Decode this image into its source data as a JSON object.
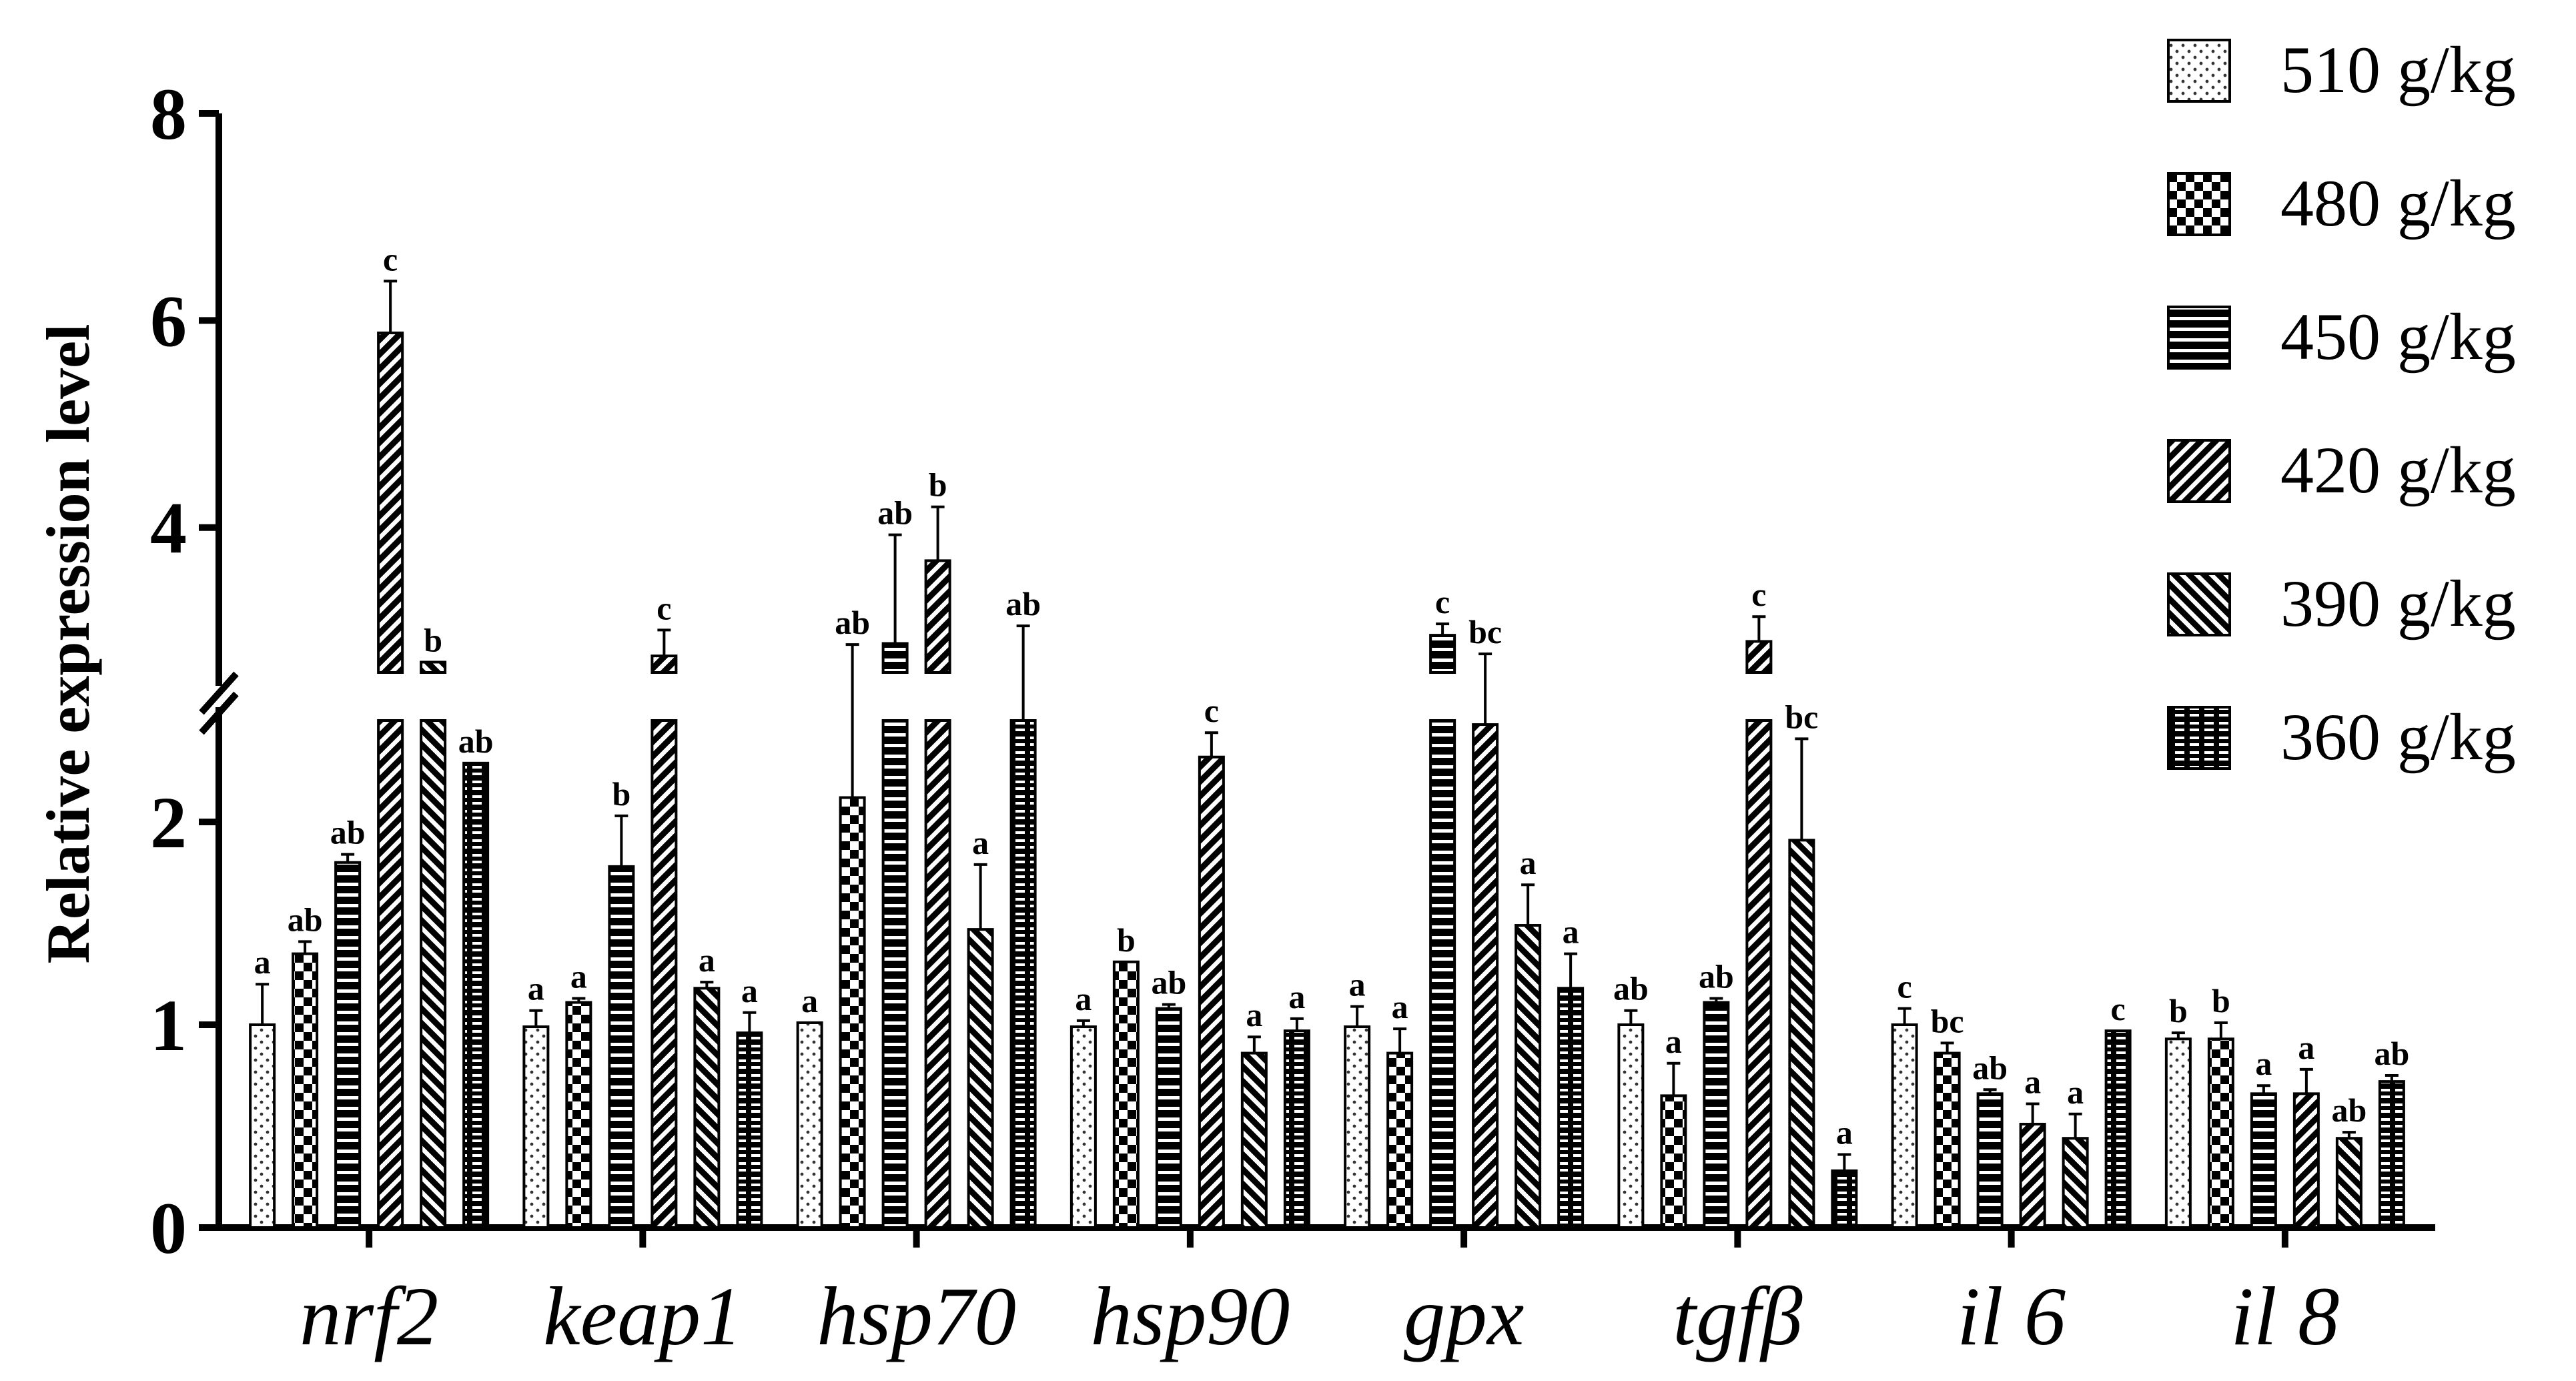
{
  "chart_data": {
    "type": "bar",
    "title": "",
    "xlabel": "",
    "ylabel": "Relative expression level",
    "yticks": [
      "0",
      "1",
      "2",
      "4",
      "6",
      "8"
    ],
    "ylim": [
      0,
      8
    ],
    "axis_break": [
      2.5,
      2.6
    ],
    "categories": [
      "nrf2",
      "keap1",
      "hsp70",
      "hsp90",
      "gpx",
      "tgfβ",
      "il 6",
      "il 8"
    ],
    "series": [
      {
        "name": "510 g/kg",
        "pattern": "dots",
        "values": [
          1.0,
          0.99,
          1.01,
          0.99,
          0.99,
          1.0,
          1.0,
          0.93
        ],
        "errors": [
          0.2,
          0.08,
          0.0,
          0.03,
          0.1,
          0.07,
          0.08,
          0.03
        ],
        "letters": [
          "a",
          "a",
          "a",
          "a",
          "a",
          "ab",
          "c",
          "b"
        ]
      },
      {
        "name": "480 g/kg",
        "pattern": "checker",
        "values": [
          1.35,
          1.11,
          2.12,
          1.31,
          0.86,
          0.65,
          0.86,
          0.93
        ],
        "errors": [
          0.06,
          0.02,
          0.75,
          0.0,
          0.12,
          0.16,
          0.05,
          0.08
        ],
        "letters": [
          "ab",
          "a",
          "ab",
          "b",
          "a",
          "a",
          "bc",
          "b"
        ]
      },
      {
        "name": "450 g/kg",
        "pattern": "hstripe",
        "values": [
          1.8,
          1.78,
          2.88,
          1.08,
          2.96,
          1.11,
          0.66,
          0.66
        ],
        "errors": [
          0.04,
          0.25,
          1.05,
          0.02,
          0.11,
          0.02,
          0.02,
          0.04
        ],
        "letters": [
          "ab",
          "b",
          "ab",
          "ab",
          "c",
          "ab",
          "ab",
          "a"
        ]
      },
      {
        "name": "420 g/kg",
        "pattern": "diag",
        "values": [
          5.88,
          2.76,
          3.68,
          2.32,
          2.48,
          2.9,
          0.51,
          0.66
        ],
        "errors": [
          0.5,
          0.25,
          0.52,
          0.12,
          0.3,
          0.24,
          0.1,
          0.12
        ],
        "letters": [
          "c",
          "c",
          "b",
          "c",
          "bc",
          "c",
          "a",
          "a"
        ]
      },
      {
        "name": "390 g/kg",
        "pattern": "antidiag",
        "values": [
          2.7,
          1.18,
          1.47,
          0.86,
          1.49,
          1.91,
          0.44,
          0.44
        ],
        "errors": [
          0.0,
          0.03,
          0.32,
          0.08,
          0.2,
          0.5,
          0.12,
          0.03
        ],
        "letters": [
          "b",
          "a",
          "a",
          "a",
          "a",
          "bc",
          "a",
          "ab"
        ]
      },
      {
        "name": "360 g/kg",
        "pattern": "grid",
        "values": [
          2.29,
          0.96,
          2.5,
          0.97,
          1.18,
          0.28,
          0.97,
          0.72
        ],
        "errors": [
          0.0,
          0.1,
          0.55,
          0.06,
          0.17,
          0.08,
          0.0,
          0.03
        ],
        "letters": [
          "ab",
          "a",
          "ab",
          "a",
          "a",
          "a",
          "c",
          "ab"
        ]
      }
    ],
    "legend_position": "top-right"
  }
}
